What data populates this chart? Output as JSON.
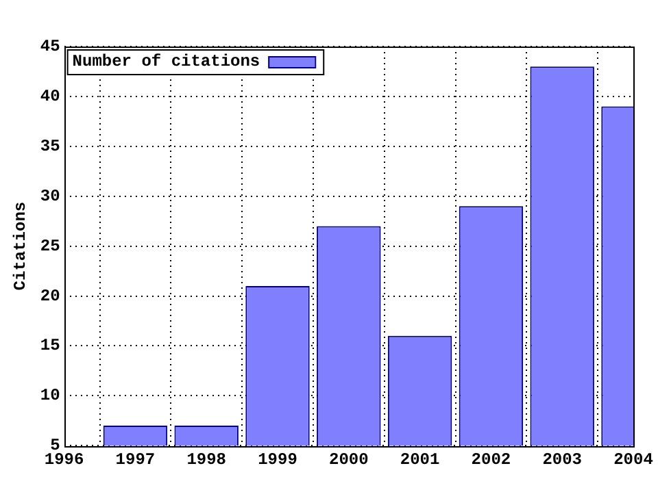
{
  "chart_data": {
    "type": "bar",
    "ylabel": "Citations",
    "x": [
      1997,
      1998,
      1999,
      2000,
      2001,
      2002,
      2003,
      2004
    ],
    "series": [
      {
        "name": "Number of citations",
        "color": "#8080ff",
        "values": [
          7,
          7,
          21,
          27,
          16,
          29,
          43,
          39
        ]
      }
    ],
    "xlim": [
      1996,
      2004
    ],
    "xticks": [
      1996,
      1997,
      1998,
      1999,
      2000,
      2001,
      2002,
      2003,
      2004
    ],
    "ylim": [
      5,
      45
    ],
    "yticks": [
      5,
      10,
      15,
      20,
      25,
      30,
      35,
      40,
      45
    ],
    "grid": true,
    "legend": "top left"
  }
}
